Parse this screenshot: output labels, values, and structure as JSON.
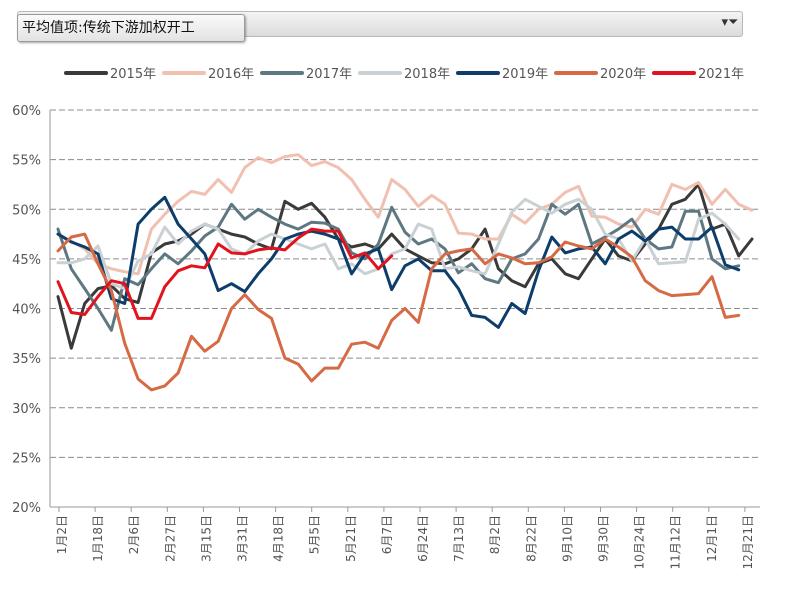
{
  "filter": {
    "label": "平均值项:传统下游加权开工"
  },
  "chart_data": {
    "type": "line",
    "title": "",
    "xlabel": "",
    "ylabel": "",
    "ylim": [
      20,
      60
    ],
    "yticks": [
      "20%",
      "25%",
      "30%",
      "35%",
      "40%",
      "45%",
      "50%",
      "55%",
      "60%"
    ],
    "x_ticks": [
      "1月2日",
      "1月18日",
      "2月6日",
      "2月27日",
      "3月15日",
      "3月31日",
      "4月18日",
      "5月5日",
      "5月21日",
      "6月7日",
      "6月24日",
      "7月13日",
      "8月2日",
      "8月22日",
      "9月10日",
      "9月30日",
      "10月24日",
      "11月12日",
      "12月1日",
      "12月21日"
    ],
    "series": [
      {
        "name": "2015年",
        "color": "#3a3a3a",
        "values": [
          41.2,
          36.0,
          40.5,
          42.0,
          42.3,
          41.0,
          40.6,
          45.6,
          46.5,
          46.8,
          47.5,
          48.5,
          48.0,
          47.5,
          47.2,
          46.5,
          46.0,
          50.8,
          50.0,
          50.6,
          49.2,
          47.0,
          46.2,
          46.5,
          46.0,
          47.5,
          46.0,
          45.3,
          44.6,
          44.5,
          45.0,
          46.0,
          48.0,
          44.0,
          42.8,
          42.2,
          44.5,
          45.0,
          43.5,
          43.0,
          45.0,
          47.0,
          45.3,
          44.8,
          46.5,
          48.0,
          50.5,
          51.0,
          52.5,
          48.0,
          48.5,
          45.3,
          47.0
        ]
      },
      {
        "name": "2016年",
        "color": "#f0c0b0",
        "values": [
          47.5,
          46.8,
          46.0,
          44.5,
          44.0,
          43.7,
          43.5,
          48.0,
          49.5,
          50.8,
          51.8,
          51.5,
          53.0,
          51.7,
          54.2,
          55.2,
          54.7,
          55.3,
          55.5,
          54.4,
          54.8,
          54.2,
          53.0,
          51.0,
          49.2,
          53.0,
          52.0,
          50.3,
          51.4,
          50.5,
          47.6,
          47.5,
          47.0,
          47.0,
          49.5,
          48.6,
          50.0,
          50.5,
          51.7,
          52.3,
          49.3,
          49.2,
          48.5,
          48.2,
          50.0,
          49.5,
          52.5,
          52.0,
          52.7,
          50.5,
          52.0,
          50.5,
          49.9
        ]
      },
      {
        "name": "2017年",
        "color": "#5e7882",
        "values": [
          48.0,
          44.0,
          42.0,
          40.0,
          37.8,
          43.0,
          42.4,
          44.0,
          45.5,
          44.5,
          45.8,
          47.3,
          48.2,
          50.5,
          49.0,
          50.0,
          49.2,
          48.5,
          48.0,
          48.7,
          48.6,
          48.0,
          45.6,
          45.0,
          46.5,
          50.2,
          47.7,
          46.5,
          47.0,
          46.0,
          43.6,
          44.5,
          43.0,
          42.6,
          45.0,
          45.5,
          47.0,
          50.5,
          49.5,
          50.5,
          46.5,
          47.2,
          48.0,
          49.0,
          47.0,
          46.0,
          46.2,
          49.8,
          49.8,
          45.0,
          44.0,
          44.3
        ]
      },
      {
        "name": "2018年",
        "color": "#c9d1d4",
        "values": [
          44.6,
          44.6,
          45.0,
          46.3,
          42.5,
          42.0,
          44.8,
          45.5,
          48.2,
          46.5,
          47.8,
          48.5,
          48.0,
          46.0,
          45.5,
          46.8,
          47.5,
          47.0,
          46.5,
          46.0,
          46.5,
          44.0,
          44.5,
          43.5,
          44.0,
          45.5,
          46.0,
          48.5,
          48.0,
          44.0,
          44.2,
          43.8,
          43.5,
          46.5,
          49.7,
          51.0,
          50.3,
          49.6,
          50.5,
          51.0,
          50.0,
          47.5,
          47.0,
          44.8,
          47.0,
          44.5,
          44.6,
          44.7,
          49.0,
          49.6,
          48.5,
          47.0
        ]
      },
      {
        "name": "2019年",
        "color": "#0c3d6b",
        "values": [
          47.5,
          46.7,
          46.2,
          45.5,
          41.0,
          40.5,
          48.5,
          50.0,
          51.2,
          48.5,
          47.0,
          45.5,
          41.8,
          42.5,
          41.7,
          43.5,
          45.0,
          47.0,
          47.5,
          47.8,
          47.5,
          47.0,
          43.5,
          45.5,
          46.0,
          41.9,
          44.3,
          45.0,
          43.8,
          43.8,
          42.0,
          39.3,
          39.1,
          38.1,
          40.5,
          39.5,
          43.8,
          47.2,
          45.6,
          46.0,
          46.2,
          44.5,
          47.0,
          47.8,
          46.8,
          48.0,
          48.2,
          47.0,
          47.0,
          48.2,
          44.4,
          43.9
        ]
      },
      {
        "name": "2020年",
        "color": "#d56a44",
        "values": [
          45.8,
          47.2,
          47.5,
          44.5,
          41.8,
          36.5,
          32.9,
          31.8,
          32.2,
          33.5,
          37.2,
          35.7,
          36.7,
          40.0,
          41.4,
          39.9,
          39.0,
          35.0,
          34.4,
          32.7,
          34.0,
          34.0,
          36.4,
          36.6,
          36.0,
          38.8,
          40.0,
          38.6,
          44.0,
          45.5,
          45.8,
          46.0,
          44.5,
          45.5,
          45.1,
          44.5,
          44.6,
          45.2,
          46.7,
          46.3,
          46.0,
          47.0,
          46.2,
          45.2,
          42.8,
          41.8,
          41.3,
          41.4,
          41.5,
          43.2,
          39.1,
          39.3
        ]
      },
      {
        "name": "2021年",
        "color": "#e0131f",
        "values": [
          42.7,
          39.6,
          39.4,
          41.2,
          42.8,
          42.5,
          39.0,
          39.0,
          42.2,
          43.8,
          44.3,
          44.1,
          46.5,
          45.6,
          45.5,
          45.9,
          46.1,
          45.9,
          47.1,
          48.0,
          47.8,
          47.8,
          45.1,
          45.6,
          44.0,
          45.3
        ]
      }
    ]
  }
}
